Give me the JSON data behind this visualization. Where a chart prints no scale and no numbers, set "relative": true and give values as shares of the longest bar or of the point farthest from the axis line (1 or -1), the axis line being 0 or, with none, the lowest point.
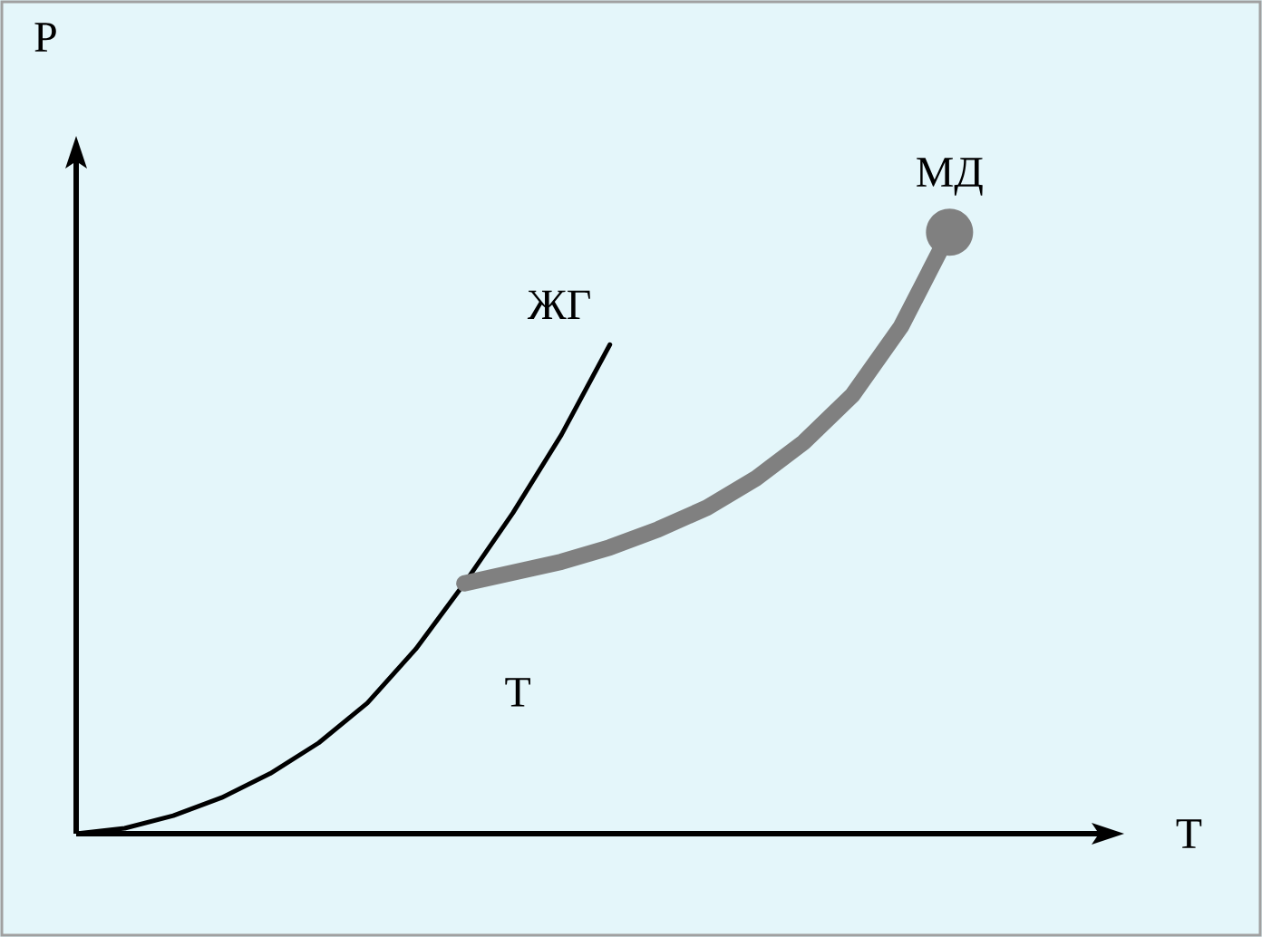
{
  "chart_data": {
    "type": "line",
    "relative": true,
    "xlabel": "T",
    "ylabel": "P",
    "categories": [
      null,
      null,
      null,
      null,
      null,
      null,
      null,
      null,
      null,
      null,
      null,
      null,
      null,
      null,
      null,
      null,
      null,
      null,
      null
    ],
    "series": [
      {
        "name": "ЖГ",
        "color": "#000000",
        "values": [
          0,
          0.009,
          0.03,
          0.06,
          0.1,
          0.151,
          0.217,
          0.307,
          0.416,
          0.533,
          0.663,
          0.813,
          null,
          null,
          null,
          null,
          null,
          null,
          null
        ]
      },
      {
        "name": "МД",
        "color": "#808080",
        "values": [
          null,
          null,
          null,
          null,
          null,
          null,
          null,
          null,
          0.416,
          0.434,
          0.452,
          0.476,
          0.506,
          0.542,
          0.59,
          0.651,
          0.729,
          0.843,
          1
        ]
      }
    ],
    "annotations": [
      "Т"
    ],
    "grid": false
  }
}
